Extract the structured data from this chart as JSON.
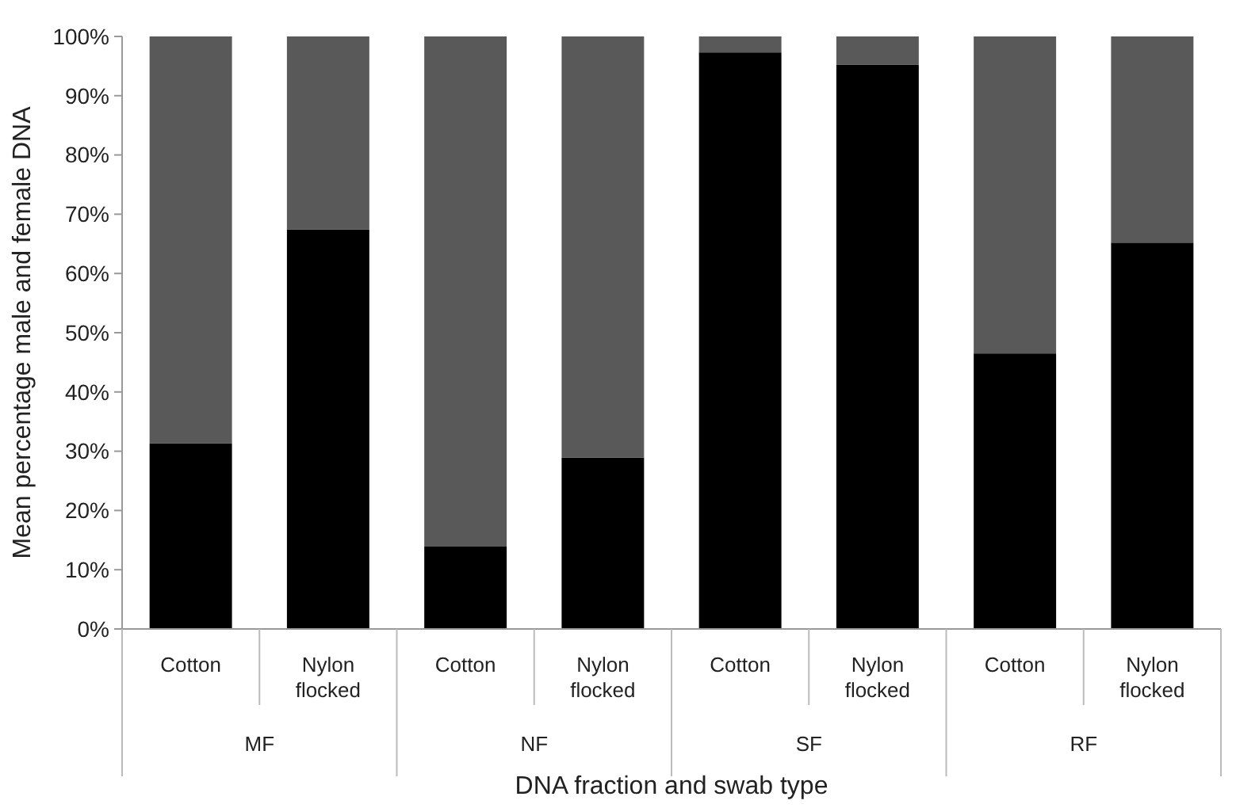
{
  "chart_data": {
    "type": "bar",
    "stacked": true,
    "xlabel": "DNA fraction and swab type",
    "ylabel": "Mean percentage male and female DNA",
    "categories": [
      "Cotton",
      "Nylon flocked",
      "Cotton",
      "Nylon flocked",
      "Cotton",
      "Nylon flocked",
      "Cotton",
      "Nylon flocked"
    ],
    "annotations": [
      "MF",
      "NF",
      "SF",
      "RF"
    ],
    "series": [
      {
        "color": "#000000",
        "values": [
          31.3,
          67.4,
          13.9,
          28.9,
          97.3,
          95.2,
          46.5,
          65.2
        ]
      },
      {
        "color": "#595959",
        "values": [
          68.7,
          32.6,
          86.1,
          71.1,
          2.7,
          4.8,
          53.5,
          34.8
        ]
      }
    ],
    "ylim": [
      0,
      100
    ],
    "yticks": [
      {
        "value": 0,
        "label": "0%"
      },
      {
        "value": 10,
        "label": "10%"
      },
      {
        "value": 20,
        "label": "20%"
      },
      {
        "value": 30,
        "label": "30%"
      },
      {
        "value": 40,
        "label": "40%"
      },
      {
        "value": 50,
        "label": "50%"
      },
      {
        "value": 60,
        "label": "60%"
      },
      {
        "value": 70,
        "label": "70%"
      },
      {
        "value": 80,
        "label": "80%"
      },
      {
        "value": 90,
        "label": "90%"
      },
      {
        "value": 100,
        "label": "100%"
      }
    ],
    "grid": false
  }
}
